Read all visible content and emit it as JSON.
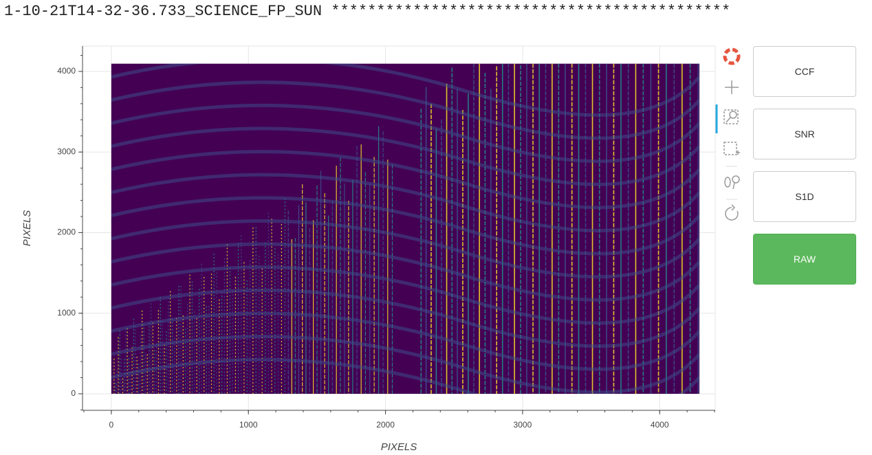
{
  "header": {
    "title": "1-10-21T14-32-36.733_SCIENCE_FP_SUN ********************************************"
  },
  "chart_data": {
    "type": "image",
    "x_label": "PIXELS",
    "y_label": "PIXELS",
    "xlim": [
      -210,
      4405
    ],
    "ylim": [
      -205,
      4315
    ],
    "xticks": [
      0,
      1000,
      2000,
      3000,
      4000
    ],
    "yticks": [
      0,
      1000,
      2000,
      3000,
      4000
    ],
    "image_extent": {
      "x": [
        0,
        4290
      ],
      "y": [
        0,
        4096
      ]
    },
    "colormap": [
      "#440154",
      "#3b528b",
      "#21918c",
      "#fde725"
    ],
    "grid": true
  },
  "buttons": [
    "CCF",
    "SNR",
    "S1D",
    "RAW"
  ],
  "active_button": 3
}
